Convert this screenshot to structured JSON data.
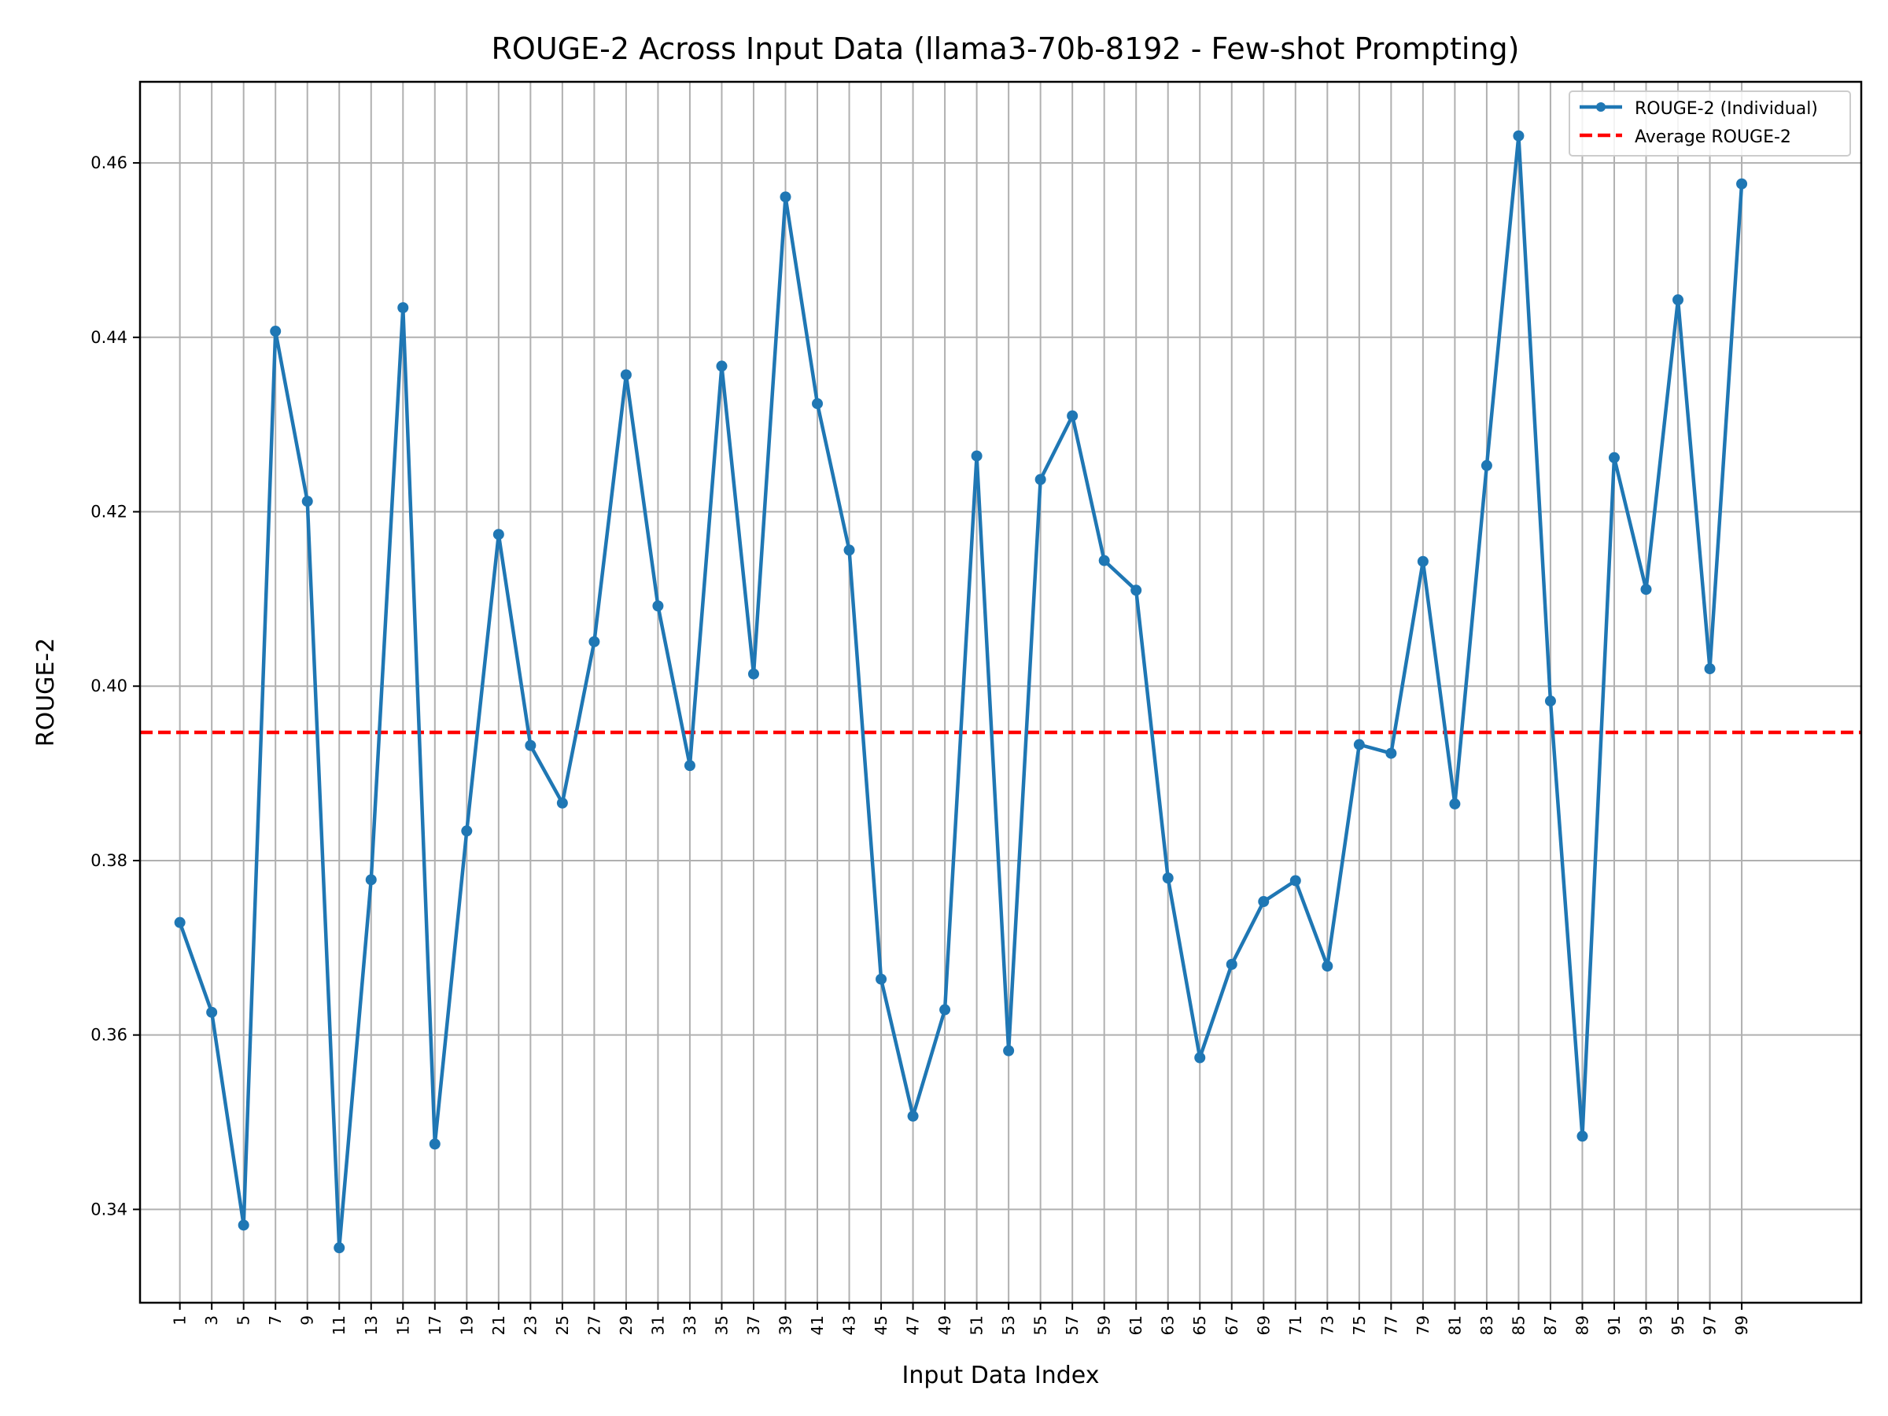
{
  "chart_data": {
    "type": "line",
    "title": "ROUGE-2 Across Input Data (llama3-70b-8192 - Few-shot Prompting)",
    "xlabel": "Input Data Index",
    "ylabel": "ROUGE-2",
    "xlim": [
      -1.5,
      106.5
    ],
    "ylim": [
      0.3293,
      0.4693
    ],
    "x_ticks": [
      1,
      3,
      5,
      7,
      9,
      11,
      13,
      15,
      17,
      19,
      21,
      23,
      25,
      27,
      29,
      31,
      33,
      35,
      37,
      39,
      41,
      43,
      45,
      47,
      49,
      51,
      53,
      55,
      57,
      59,
      61,
      63,
      65,
      67,
      69,
      71,
      73,
      75,
      77,
      79,
      81,
      83,
      85,
      87,
      89,
      91,
      93,
      95,
      97,
      99
    ],
    "y_ticks": [
      0.34,
      0.36,
      0.38,
      0.4,
      0.42,
      0.44,
      0.46
    ],
    "y_tick_labels": [
      "0.34",
      "0.36",
      "0.38",
      "0.40",
      "0.42",
      "0.44",
      "0.46"
    ],
    "grid": true,
    "legend_position": "top-right",
    "series": [
      {
        "name": "ROUGE-2 (Individual)",
        "color": "#1f77b4",
        "style": "line-with-markers",
        "x": [
          1,
          3,
          5,
          7,
          9,
          11,
          13,
          15,
          17,
          19,
          21,
          23,
          25,
          27,
          29,
          31,
          33,
          35,
          37,
          39,
          41,
          43,
          45,
          47,
          49,
          51,
          53,
          55,
          57,
          59,
          61,
          63,
          65,
          67,
          69,
          71,
          73,
          75,
          77,
          79,
          81,
          83,
          85,
          87,
          89,
          91,
          93,
          95,
          97,
          99
        ],
        "y": [
          0.3729,
          0.3626,
          0.3382,
          0.4407,
          0.4212,
          0.3356,
          0.3778,
          0.4434,
          0.3475,
          0.3834,
          0.4174,
          0.3932,
          0.3866,
          0.4051,
          0.4357,
          0.4092,
          0.3909,
          0.4367,
          0.4014,
          0.4561,
          0.4324,
          0.4156,
          0.3664,
          0.3507,
          0.3629,
          0.4264,
          0.3582,
          0.4237,
          0.431,
          0.4144,
          0.411,
          0.378,
          0.3574,
          0.3681,
          0.3753,
          0.3777,
          0.3679,
          0.3933,
          0.3923,
          0.4143,
          0.3865,
          0.4253,
          0.4631,
          0.3983,
          0.3484,
          0.4262,
          0.4111,
          0.4443,
          0.402,
          0.4576
        ]
      },
      {
        "name": "Average ROUGE-2",
        "color": "#ff0000",
        "style": "dashed",
        "y_constant": 0.3947
      }
    ]
  }
}
